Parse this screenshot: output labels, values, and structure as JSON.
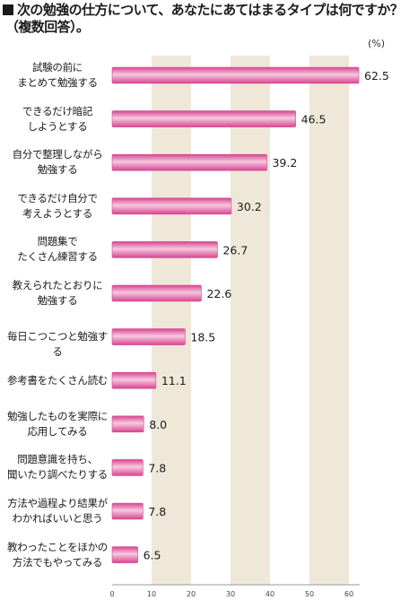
{
  "title": {
    "line1": "次の勉強の仕方について、あなたにあてはまるタイプは何ですか？",
    "line2": "（複数回答）。"
  },
  "colors": {
    "bar_dark": "#d64690",
    "bar_light": "#f7c8e0",
    "band": "#efe8d9",
    "axis": "#999999",
    "text": "#1b1b1b"
  },
  "chart_data": {
    "type": "bar",
    "orientation": "horizontal",
    "title": "次の勉強の仕方について、あなたにあてはまるタイプは何ですか？（複数回答）。",
    "unit": "(%)",
    "categories": [
      "試験の前に\nまとめて勉強する",
      "できるだけ暗記\nしようとする",
      "自分で整理しながら\n勉強する",
      "できるだけ自分で\n考えようとする",
      "問題集で\nたくさん練習する",
      "教えられたとおりに\n勉強する",
      "毎日こつこつと勉強する",
      "参考書をたくさん読む",
      "勉強したものを実際に\n応用してみる",
      "問題意識を持ち、\n聞いたり調べたりする",
      "方法や過程より結果が\nわかればいいと思う",
      "教わったことをほかの\n方法でもやってみる"
    ],
    "values": [
      62.5,
      46.5,
      39.2,
      30.2,
      26.7,
      22.6,
      18.5,
      11.1,
      8.0,
      7.8,
      7.8,
      6.5
    ],
    "value_labels": [
      "62.5",
      "46.5",
      "39.2",
      "30.2",
      "26.7",
      "22.6",
      "18.5",
      "11.1",
      "8.0",
      "7.8",
      "7.8",
      "6.5"
    ],
    "xlim": [
      0,
      60
    ],
    "xticks": [
      "0",
      "10",
      "20",
      "30",
      "40",
      "50",
      "60"
    ],
    "shaded_bands": [
      [
        10,
        20
      ],
      [
        30,
        40
      ],
      [
        50,
        60
      ]
    ],
    "grid": false,
    "legend": "none"
  }
}
